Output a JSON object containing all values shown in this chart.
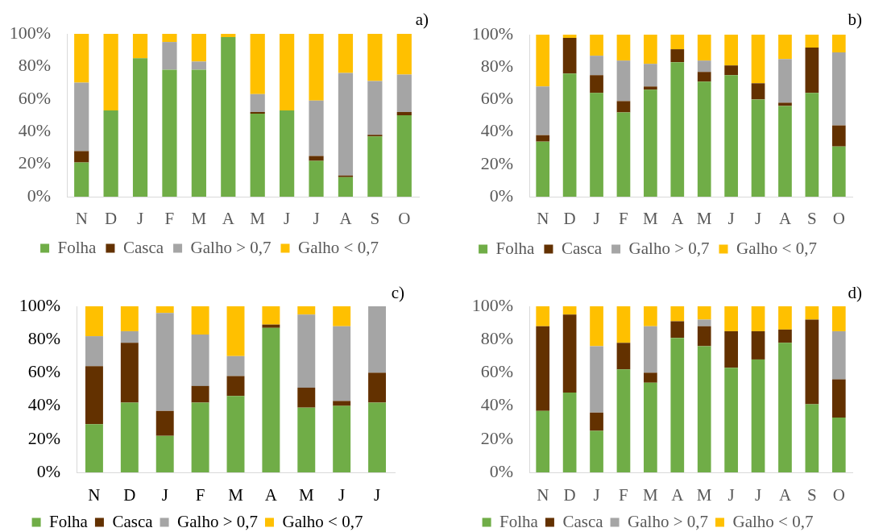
{
  "chart_data": [
    {
      "type": "bar",
      "title": "a)",
      "categories": [
        "N",
        "D",
        "J",
        "F",
        "M",
        "A",
        "M",
        "J",
        "J",
        "A",
        "S",
        "O"
      ],
      "stacked": true,
      "legend": "bottom",
      "grid": false,
      "ylim": [
        0,
        100
      ],
      "yticks": [
        {
          "value": 0,
          "label": "0%"
        },
        {
          "value": 20,
          "label": "20%"
        },
        {
          "value": 40,
          "label": "40%"
        },
        {
          "value": 60,
          "label": "60%"
        },
        {
          "value": 80,
          "label": "80%"
        },
        {
          "value": 100,
          "label": "100%"
        }
      ],
      "series": [
        {
          "name": "Folha",
          "color": "#70ad47",
          "values": [
            21,
            53,
            85,
            78,
            78,
            98,
            51,
            53,
            22,
            12,
            37,
            50
          ]
        },
        {
          "name": "Casca",
          "color": "#633100",
          "values": [
            7,
            0,
            0,
            0,
            0,
            0,
            1,
            0,
            3,
            1,
            1,
            2
          ]
        },
        {
          "name": "Galho > 0,7",
          "color": "#a5a5a5",
          "values": [
            42,
            0,
            0,
            17,
            5,
            0,
            11,
            0,
            34,
            63,
            33,
            23
          ]
        },
        {
          "name": "Galho < 0,7",
          "color": "#ffc000",
          "values": [
            30,
            47,
            15,
            5,
            17,
            2,
            37,
            47,
            41,
            24,
            29,
            25
          ]
        }
      ]
    },
    {
      "type": "bar",
      "title": "b)",
      "categories": [
        "N",
        "D",
        "J",
        "F",
        "M",
        "A",
        "M",
        "J",
        "J",
        "A",
        "S",
        "O"
      ],
      "stacked": true,
      "legend": "bottom",
      "grid": false,
      "ylim": [
        0,
        100
      ],
      "yticks": [
        {
          "value": 0,
          "label": "0%"
        },
        {
          "value": 20,
          "label": "20%"
        },
        {
          "value": 40,
          "label": "40%"
        },
        {
          "value": 60,
          "label": "60%"
        },
        {
          "value": 80,
          "label": "80%"
        },
        {
          "value": 100,
          "label": "100%"
        }
      ],
      "series": [
        {
          "name": "Folha",
          "color": "#70ad47",
          "values": [
            34,
            76,
            64,
            52,
            66,
            83,
            71,
            75,
            60,
            56,
            64,
            31
          ]
        },
        {
          "name": "Casca",
          "color": "#633100",
          "values": [
            4,
            22,
            11,
            7,
            2,
            8,
            6,
            6,
            10,
            2,
            28,
            13
          ]
        },
        {
          "name": "Galho > 0,7",
          "color": "#a5a5a5",
          "values": [
            30,
            0,
            12,
            25,
            14,
            0,
            7,
            0,
            0,
            27,
            0,
            45
          ]
        },
        {
          "name": "Galho < 0,7",
          "color": "#ffc000",
          "values": [
            32,
            2,
            13,
            16,
            18,
            9,
            16,
            19,
            30,
            15,
            8,
            11
          ]
        }
      ]
    },
    {
      "type": "bar",
      "title": "c)",
      "categories": [
        "N",
        "D",
        "J",
        "F",
        "M",
        "A",
        "M",
        "J",
        "J"
      ],
      "stacked": true,
      "legend": "bottom",
      "grid": false,
      "ylim": [
        0,
        100
      ],
      "yticks": [
        {
          "value": 0,
          "label": "0%"
        },
        {
          "value": 20,
          "label": "20%"
        },
        {
          "value": 40,
          "label": "40%"
        },
        {
          "value": 60,
          "label": "60%"
        },
        {
          "value": 80,
          "label": "80%"
        },
        {
          "value": 100,
          "label": "100%"
        }
      ],
      "series": [
        {
          "name": "Folha",
          "color": "#70ad47",
          "values": [
            29,
            42,
            22,
            42,
            46,
            87,
            39,
            40,
            42
          ]
        },
        {
          "name": "Casca",
          "color": "#633100",
          "values": [
            35,
            36,
            15,
            10,
            12,
            2,
            12,
            3,
            18
          ]
        },
        {
          "name": "Galho > 0,7",
          "color": "#a5a5a5",
          "values": [
            18,
            7,
            59,
            31,
            12,
            0,
            44,
            45,
            40
          ]
        },
        {
          "name": "Galho < 0,7",
          "color": "#ffc000",
          "values": [
            18,
            15,
            4,
            17,
            30,
            11,
            5,
            12,
            0
          ]
        }
      ]
    },
    {
      "type": "bar",
      "title": "d)",
      "categories": [
        "N",
        "D",
        "J",
        "F",
        "M",
        "A",
        "M",
        "J",
        "J",
        "A",
        "S",
        "O"
      ],
      "stacked": true,
      "legend": "bottom",
      "grid": false,
      "ylim": [
        0,
        100
      ],
      "yticks": [
        {
          "value": 0,
          "label": "0%"
        },
        {
          "value": 20,
          "label": "20%"
        },
        {
          "value": 40,
          "label": "40%"
        },
        {
          "value": 60,
          "label": "60%"
        },
        {
          "value": 80,
          "label": "80%"
        },
        {
          "value": 100,
          "label": "100%"
        }
      ],
      "series": [
        {
          "name": "Folha",
          "color": "#70ad47",
          "values": [
            37,
            48,
            25,
            62,
            54,
            81,
            76,
            63,
            68,
            78,
            41,
            33
          ]
        },
        {
          "name": "Casca",
          "color": "#633100",
          "values": [
            51,
            47,
            11,
            16,
            6,
            10,
            12,
            22,
            17,
            8,
            51,
            23
          ]
        },
        {
          "name": "Galho > 0,7",
          "color": "#a5a5a5",
          "values": [
            0,
            0,
            40,
            0,
            28,
            0,
            4,
            0,
            0,
            0,
            0,
            29
          ]
        },
        {
          "name": "Galho < 0,7",
          "color": "#ffc000",
          "values": [
            12,
            5,
            24,
            22,
            12,
            9,
            8,
            15,
            15,
            14,
            8,
            15
          ]
        }
      ]
    }
  ]
}
